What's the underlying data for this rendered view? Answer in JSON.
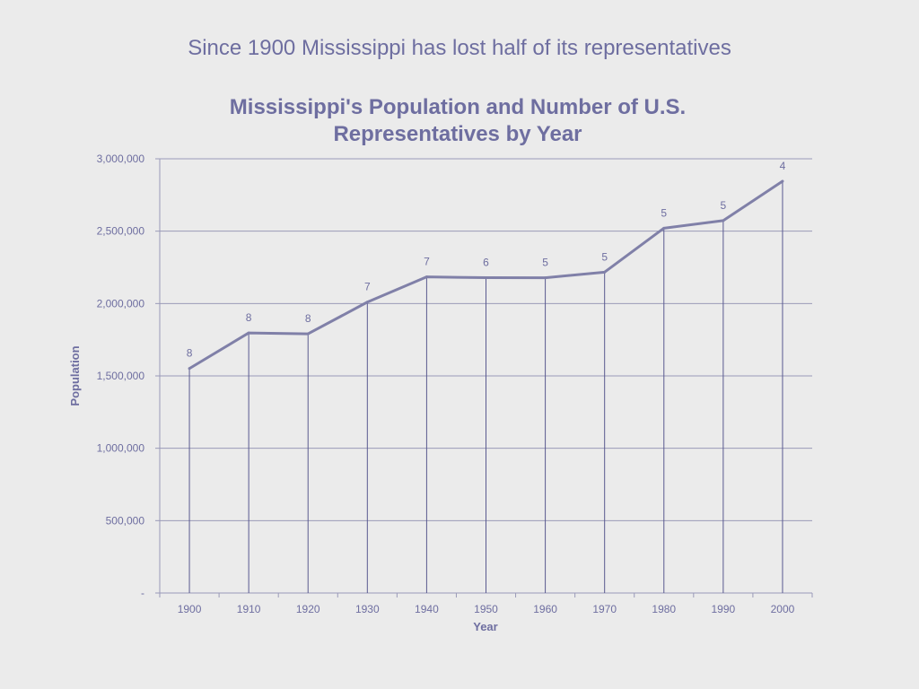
{
  "slide": {
    "title": "Since 1900 Mississippi has lost half of its representatives"
  },
  "colors": {
    "accent": "#6e6ea0",
    "line": "#8080a8",
    "grid": "#9a9ab8",
    "background": "#ebebeb"
  },
  "chart_data": {
    "type": "line",
    "title_line1": "Mississippi's Population and Number of U.S.",
    "title_line2": "Representatives  by Year",
    "xlabel": "Year",
    "ylabel": "Population",
    "ylim": [
      0,
      3000000
    ],
    "yticks": [
      0,
      500000,
      1000000,
      1500000,
      2000000,
      2500000,
      3000000
    ],
    "ytick_labels": [
      "-",
      "500,000",
      "1,000,000",
      "1,500,000",
      "2,000,000",
      "2,500,000",
      "3,000,000"
    ],
    "categories": [
      "1900",
      "1910",
      "1920",
      "1930",
      "1940",
      "1950",
      "1960",
      "1970",
      "1980",
      "1990",
      "2000"
    ],
    "values": [
      1551270,
      1797114,
      1790618,
      2009821,
      2183796,
      2178914,
      2178141,
      2216912,
      2520638,
      2573216,
      2844658
    ],
    "representatives": [
      "8",
      "8",
      "8",
      "7",
      "7",
      "6",
      "5",
      "5",
      "5",
      "5",
      "4"
    ],
    "grid": true,
    "drop_lines": true,
    "legend": "none"
  }
}
